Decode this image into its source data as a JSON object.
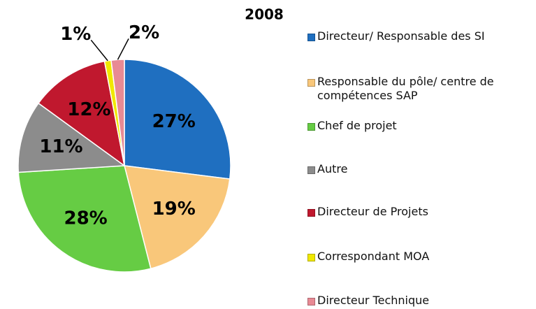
{
  "chart_data": {
    "type": "pie",
    "title": "2008",
    "categories": [
      "Directeur/ Responsable des SI",
      "Responsable du pôle/ centre de compétences SAP",
      "Chef de projet",
      "Autre",
      "Directeur de Projets",
      "Correspondant MOA",
      "Directeur Technique"
    ],
    "values": [
      27,
      19,
      28,
      11,
      12,
      1,
      2
    ],
    "value_labels": [
      "27%",
      "19%",
      "28%",
      "11%",
      "12%",
      "1%",
      "2%"
    ],
    "colors": [
      "#1f6fc0",
      "#f9c77a",
      "#66cc44",
      "#8c8c8c",
      "#c0182e",
      "#f0e800",
      "#e88a94"
    ],
    "legend": "right"
  }
}
